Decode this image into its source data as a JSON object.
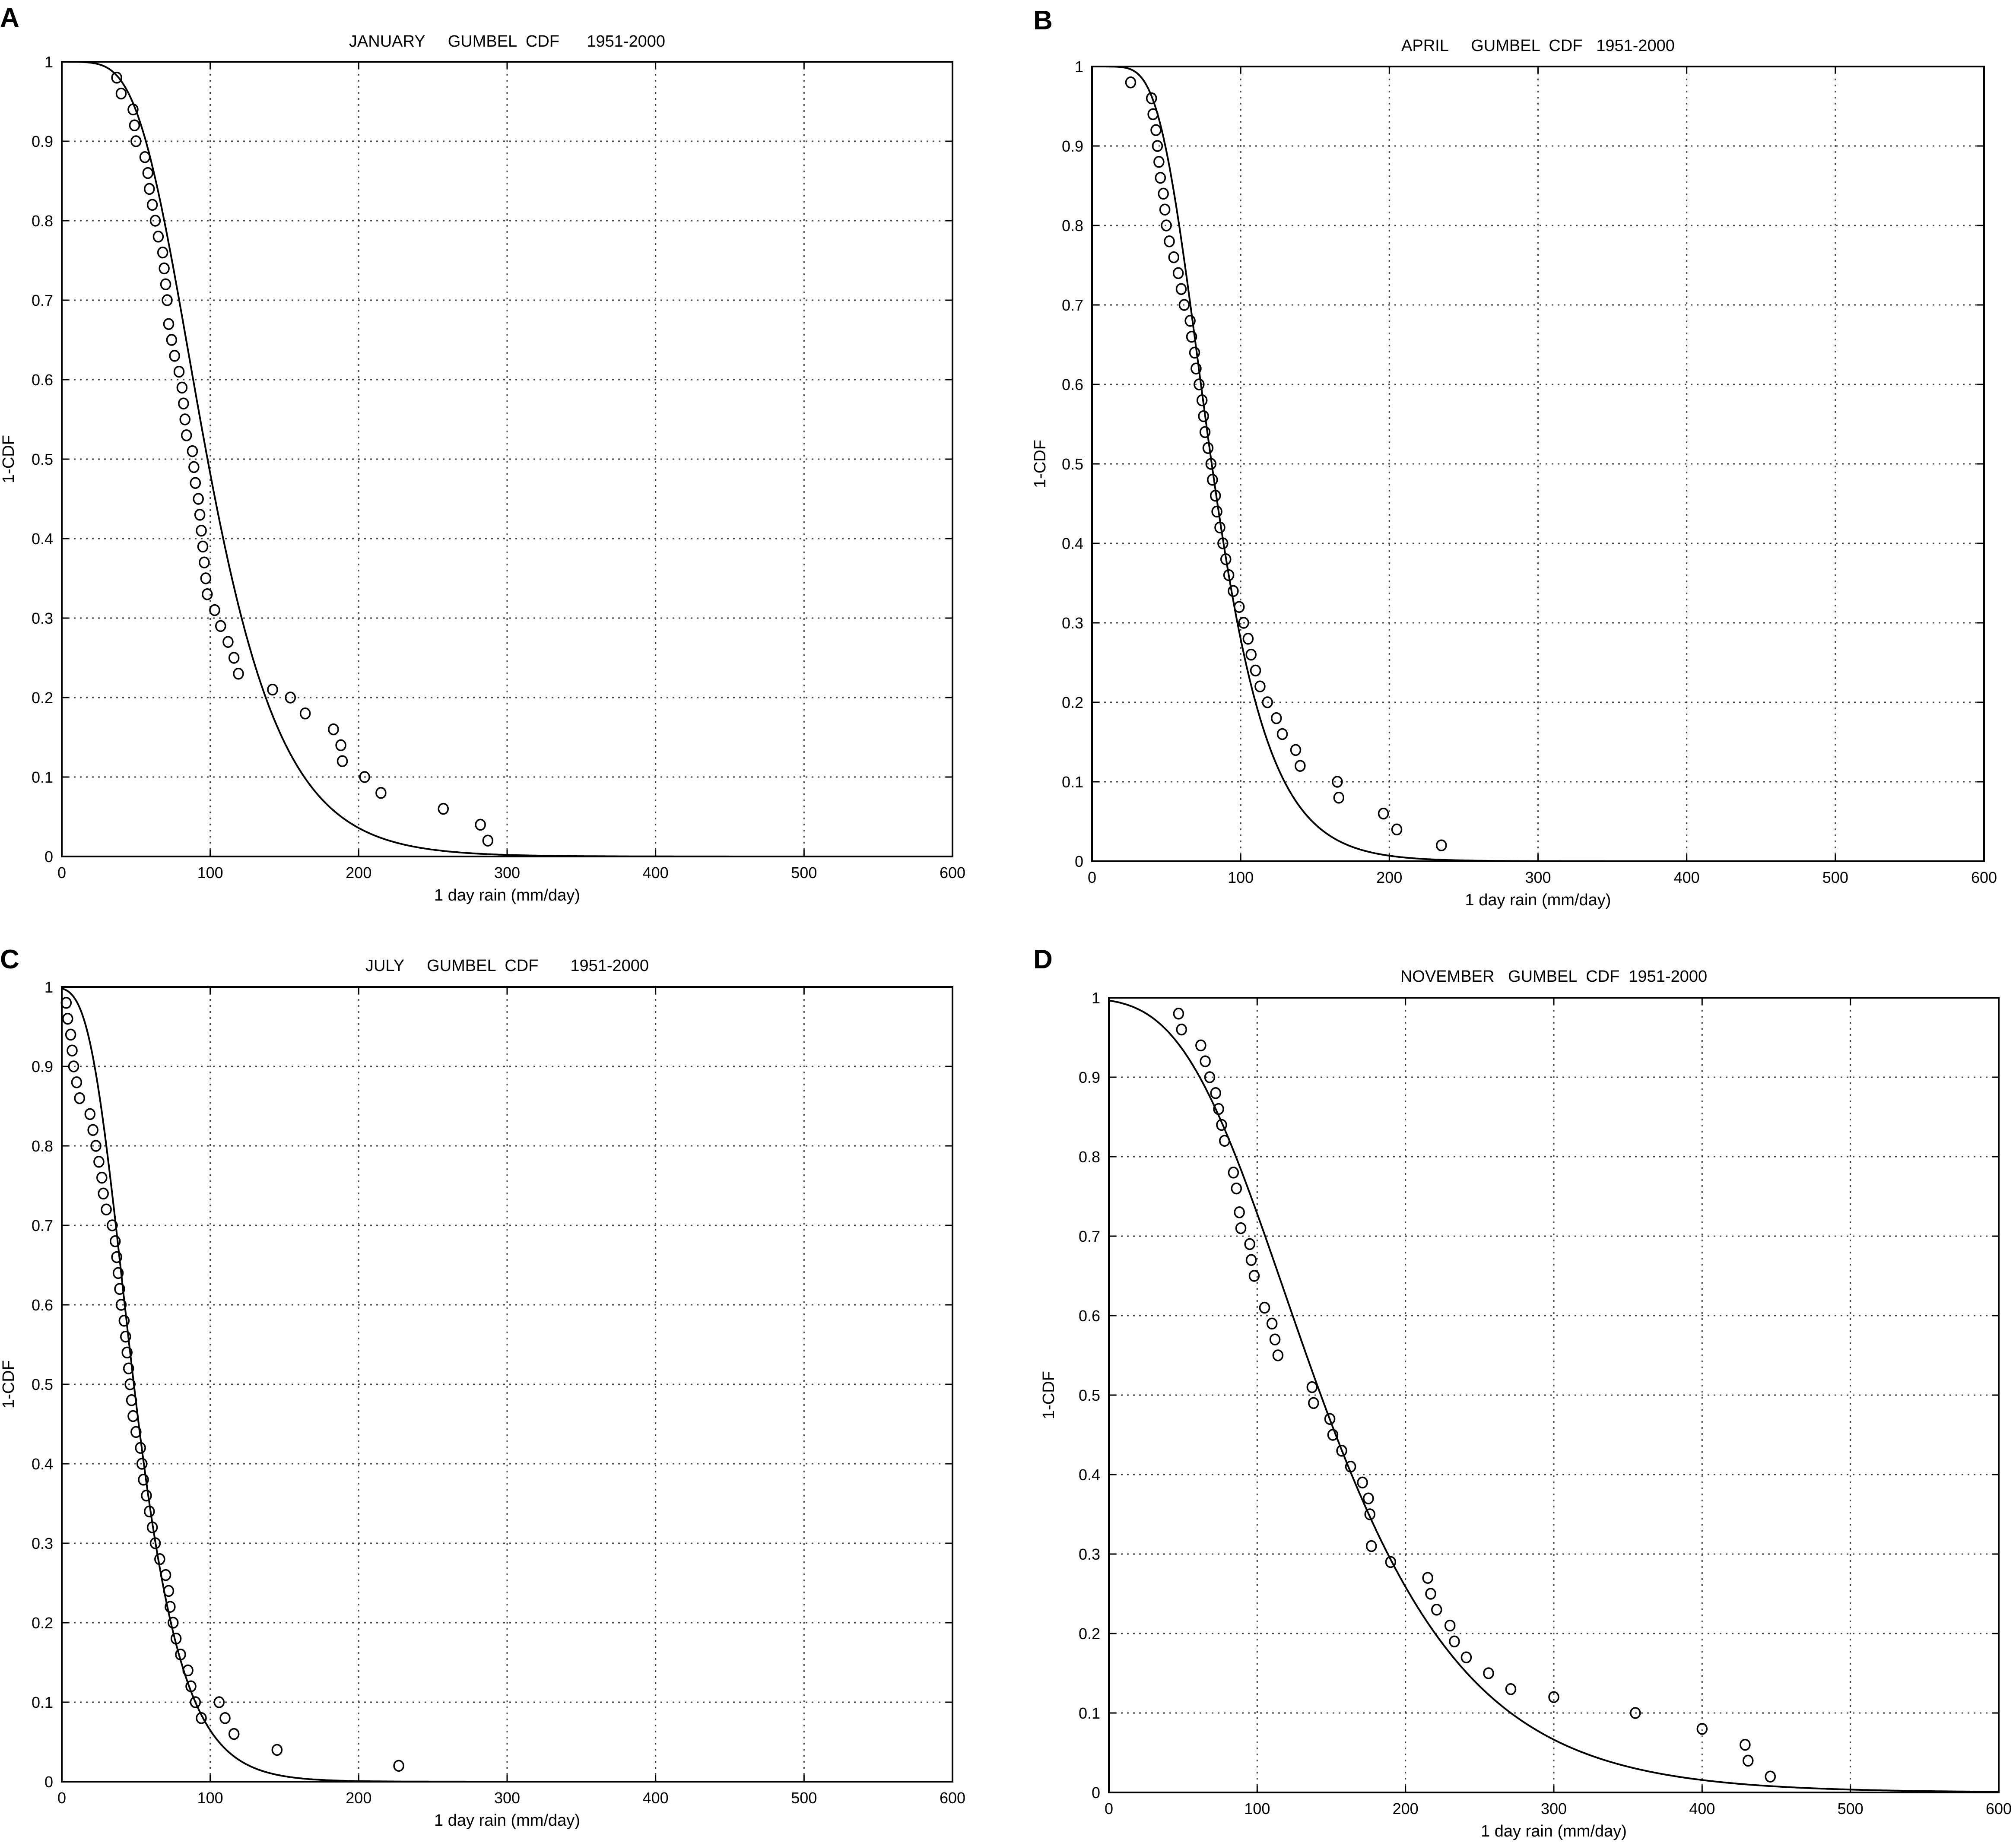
{
  "figure": {
    "panels": [
      {
        "letter": "A",
        "title": "JANUARY     GUMBEL  CDF      1951-2000"
      },
      {
        "letter": "B",
        "title": "APRIL     GUMBEL  CDF   1951-2000"
      },
      {
        "letter": "C",
        "title": "JULY     GUMBEL  CDF       1951-2000"
      },
      {
        "letter": "D",
        "title": "NOVEMBER   GUMBEL  CDF  1951-2000"
      }
    ]
  },
  "chart_data": [
    {
      "type": "scatter",
      "panel": "A",
      "title": "JANUARY     GUMBEL  CDF      1951-2000",
      "xlabel": "1 day rain (mm/day)",
      "ylabel": "1-CDF",
      "xlim": [
        0,
        600
      ],
      "ylim": [
        0,
        1
      ],
      "xticks": [
        0,
        100,
        200,
        300,
        400,
        500,
        600
      ],
      "yticks": [
        0,
        0.1,
        0.2,
        0.3,
        0.4,
        0.5,
        0.6,
        0.7,
        0.8,
        0.9,
        1
      ],
      "grid": true,
      "fit": {
        "name": "Gumbel fit",
        "mu": 85.5,
        "beta": 34.6
      },
      "series": [
        {
          "kind": "observed",
          "x": [
            37,
            40,
            48,
            49,
            50,
            56,
            58,
            59,
            61,
            63,
            65,
            68,
            69,
            70,
            71,
            72,
            74,
            76,
            79,
            81,
            82,
            83,
            84,
            88,
            89,
            90,
            92,
            93,
            94,
            95,
            96,
            97,
            98,
            103,
            107,
            112,
            116,
            119,
            142,
            154,
            164,
            183,
            188,
            189,
            204,
            215,
            257,
            282,
            287
          ],
          "y": [
            0.98,
            0.96,
            0.94,
            0.92,
            0.9,
            0.88,
            0.86,
            0.84,
            0.82,
            0.8,
            0.78,
            0.76,
            0.74,
            0.72,
            0.7,
            0.67,
            0.65,
            0.63,
            0.61,
            0.59,
            0.57,
            0.55,
            0.53,
            0.51,
            0.49,
            0.47,
            0.45,
            0.43,
            0.41,
            0.39,
            0.37,
            0.35,
            0.33,
            0.31,
            0.29,
            0.27,
            0.25,
            0.23,
            0.21,
            0.2,
            0.18,
            0.16,
            0.14,
            0.12,
            0.1,
            0.08,
            0.06,
            0.04,
            0.02
          ]
        }
      ]
    },
    {
      "type": "scatter",
      "panel": "B",
      "title": "APRIL     GUMBEL  CDF   1951-2000",
      "xlabel": "1 day rain (mm/day)",
      "ylabel": "1-CDF",
      "xlim": [
        0,
        600
      ],
      "ylim": [
        0,
        1
      ],
      "xticks": [
        0,
        100,
        200,
        300,
        400,
        500,
        600
      ],
      "yticks": [
        0,
        0.1,
        0.2,
        0.3,
        0.4,
        0.5,
        0.6,
        0.7,
        0.8,
        0.9,
        1
      ],
      "grid": true,
      "fit": {
        "name": "Gumbel fit",
        "mu": 71,
        "beta": 26
      },
      "series": [
        {
          "kind": "observed",
          "x": [
            26,
            40,
            41,
            43,
            44,
            45,
            46,
            48,
            49,
            50,
            52,
            55,
            58,
            60,
            62,
            66,
            67,
            69,
            70,
            72,
            74,
            75,
            76,
            78,
            80,
            81,
            83,
            84,
            86,
            88,
            90,
            92,
            95,
            99,
            102,
            105,
            107,
            110,
            113,
            118,
            124,
            128,
            137,
            140,
            165,
            166,
            196,
            205,
            235
          ],
          "y": [
            0.98,
            0.96,
            0.94,
            0.92,
            0.9,
            0.88,
            0.86,
            0.84,
            0.82,
            0.8,
            0.78,
            0.76,
            0.74,
            0.72,
            0.7,
            0.68,
            0.66,
            0.64,
            0.62,
            0.6,
            0.58,
            0.56,
            0.54,
            0.52,
            0.5,
            0.48,
            0.46,
            0.44,
            0.42,
            0.4,
            0.38,
            0.36,
            0.34,
            0.32,
            0.3,
            0.28,
            0.26,
            0.24,
            0.22,
            0.2,
            0.18,
            0.16,
            0.14,
            0.12,
            0.1,
            0.08,
            0.06,
            0.04,
            0.02
          ]
        }
      ]
    },
    {
      "type": "scatter",
      "panel": "C",
      "title": "JULY     GUMBEL  CDF       1951-2000",
      "xlabel": "1 day rain (mm/day)",
      "ylabel": "1-CDF",
      "xlim": [
        0,
        600
      ],
      "ylim": [
        0,
        1
      ],
      "xticks": [
        0,
        100,
        200,
        300,
        400,
        500,
        600
      ],
      "yticks": [
        0,
        0.1,
        0.2,
        0.3,
        0.4,
        0.5,
        0.6,
        0.7,
        0.8,
        0.9,
        1
      ],
      "grid": true,
      "fit": {
        "name": "Gumbel fit",
        "mu": 40.5,
        "beta": 22
      },
      "series": [
        {
          "kind": "observed",
          "x": [
            3,
            4,
            6,
            7,
            8,
            10,
            12,
            19,
            21,
            23,
            25,
            27,
            28,
            30,
            34,
            36,
            37,
            38,
            39,
            40,
            42,
            43,
            44,
            45,
            46,
            47,
            48,
            50,
            53,
            54,
            55,
            57,
            59,
            61,
            63,
            66,
            70,
            72,
            73,
            75,
            77,
            80,
            85,
            87,
            90,
            94,
            106,
            110,
            116,
            145,
            227
          ],
          "y": [
            0.98,
            0.96,
            0.94,
            0.92,
            0.9,
            0.88,
            0.86,
            0.84,
            0.82,
            0.8,
            0.78,
            0.76,
            0.74,
            0.72,
            0.7,
            0.68,
            0.66,
            0.64,
            0.62,
            0.6,
            0.58,
            0.56,
            0.54,
            0.52,
            0.5,
            0.48,
            0.46,
            0.44,
            0.42,
            0.4,
            0.38,
            0.36,
            0.34,
            0.32,
            0.3,
            0.28,
            0.26,
            0.24,
            0.22,
            0.2,
            0.18,
            0.16,
            0.14,
            0.12,
            0.1,
            0.08,
            0.1,
            0.08,
            0.06,
            0.04,
            0.02
          ]
        }
      ]
    },
    {
      "type": "scatter",
      "panel": "D",
      "title": "NOVEMBER   GUMBEL  CDF  1951-2000",
      "xlabel": "1 day rain (mm/day)",
      "ylabel": "1-CDF",
      "xlim": [
        0,
        600
      ],
      "ylim": [
        0,
        1
      ],
      "xticks": [
        0,
        100,
        200,
        300,
        400,
        500,
        600
      ],
      "yticks": [
        0,
        0.1,
        0.2,
        0.3,
        0.4,
        0.5,
        0.6,
        0.7,
        0.8,
        0.9,
        1
      ],
      "grid": true,
      "fit": {
        "name": "Gumbel fit",
        "mu": 118,
        "beta": 68
      },
      "series": [
        {
          "kind": "observed",
          "x": [
            47,
            49,
            62,
            65,
            68,
            72,
            74,
            76,
            78,
            84,
            86,
            88,
            89,
            95,
            96,
            98,
            105,
            110,
            112,
            114,
            137,
            138,
            149,
            151,
            157,
            163,
            171,
            175,
            176,
            177,
            190,
            215,
            217,
            221,
            230,
            233,
            241,
            256,
            271,
            300,
            355,
            400,
            429,
            431,
            446
          ],
          "y": [
            0.98,
            0.96,
            0.94,
            0.92,
            0.9,
            0.88,
            0.86,
            0.84,
            0.82,
            0.78,
            0.76,
            0.73,
            0.71,
            0.69,
            0.67,
            0.65,
            0.61,
            0.59,
            0.57,
            0.55,
            0.51,
            0.49,
            0.47,
            0.45,
            0.43,
            0.41,
            0.39,
            0.37,
            0.35,
            0.31,
            0.29,
            0.27,
            0.25,
            0.23,
            0.21,
            0.19,
            0.17,
            0.15,
            0.13,
            0.12,
            0.1,
            0.08,
            0.06,
            0.04,
            0.02
          ]
        }
      ]
    }
  ]
}
